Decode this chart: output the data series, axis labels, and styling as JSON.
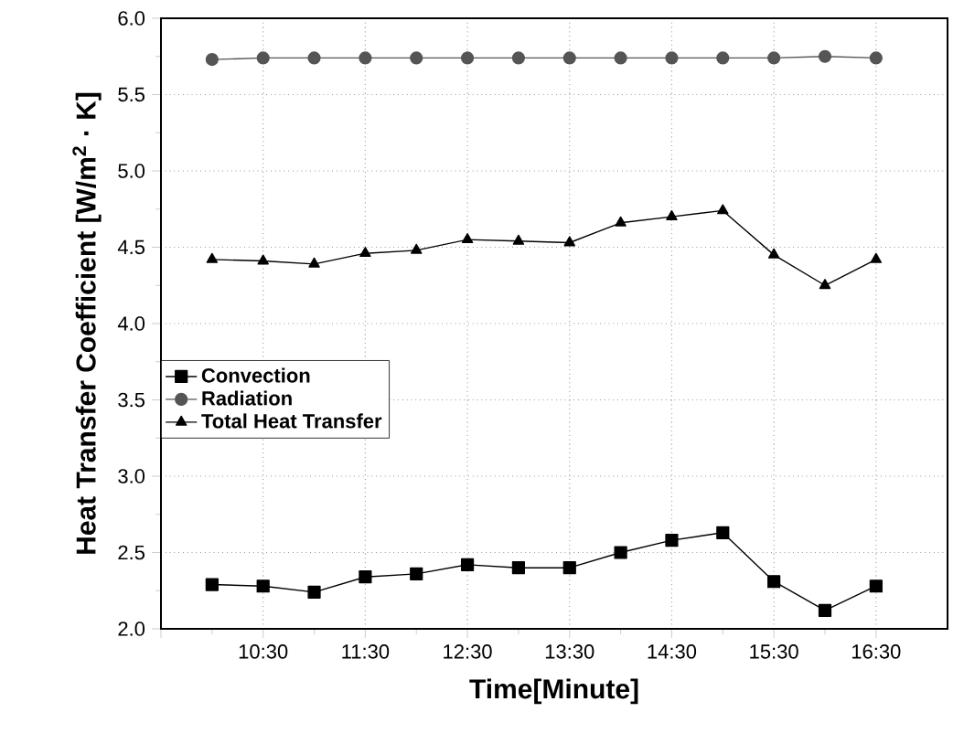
{
  "chart_data": {
    "type": "line",
    "xlabel": "Time[Minute]",
    "ylabel": "Heat Transfer Coefficient [W/m$^{2}$ · K]",
    "x": [
      10.0,
      10.5,
      11.0,
      11.5,
      12.0,
      12.5,
      13.0,
      13.5,
      14.0,
      14.5,
      15.0,
      15.5,
      16.0,
      16.5
    ],
    "series": [
      {
        "name": "Convection",
        "color": "#000000",
        "marker": "square",
        "values": [
          2.29,
          2.28,
          2.24,
          2.34,
          2.36,
          2.42,
          2.4,
          2.4,
          2.5,
          2.58,
          2.63,
          2.31,
          2.12,
          2.28
        ]
      },
      {
        "name": "Radiation",
        "color": "#555555",
        "marker": "circle",
        "values": [
          5.73,
          5.74,
          5.74,
          5.74,
          5.74,
          5.74,
          5.74,
          5.74,
          5.74,
          5.74,
          5.74,
          5.74,
          5.75,
          5.74
        ]
      },
      {
        "name": "Total Heat Transfer",
        "color": "#000000",
        "marker": "triangle",
        "values": [
          4.42,
          4.41,
          4.39,
          4.46,
          4.48,
          4.55,
          4.54,
          4.53,
          4.66,
          4.7,
          4.74,
          4.45,
          4.25,
          4.42
        ]
      }
    ],
    "xlim": [
      9.5,
      17.2
    ],
    "xticks": [
      {
        "value": 9.5,
        "label": null
      },
      {
        "value": 10.5,
        "label": "10:30"
      },
      {
        "value": 11.5,
        "label": "11:30"
      },
      {
        "value": 12.5,
        "label": "12:30"
      },
      {
        "value": 13.5,
        "label": "13:30"
      },
      {
        "value": 14.5,
        "label": "14:30"
      },
      {
        "value": 15.5,
        "label": "15:30"
      },
      {
        "value": 16.5,
        "label": "16:30"
      }
    ],
    "ylim": [
      2.0,
      6.0
    ],
    "yticks": [
      {
        "value": 2,
        "label": "2.0"
      },
      2.5,
      {
        "value": 3,
        "label": "3.0"
      },
      3.5,
      {
        "value": 4,
        "label": "4.0"
      },
      4.5,
      {
        "value": 5,
        "label": "5.0"
      },
      5.5,
      {
        "value": 6,
        "label": "6.0"
      }
    ],
    "grid": true,
    "legend": "left",
    "line_style": "solid"
  }
}
